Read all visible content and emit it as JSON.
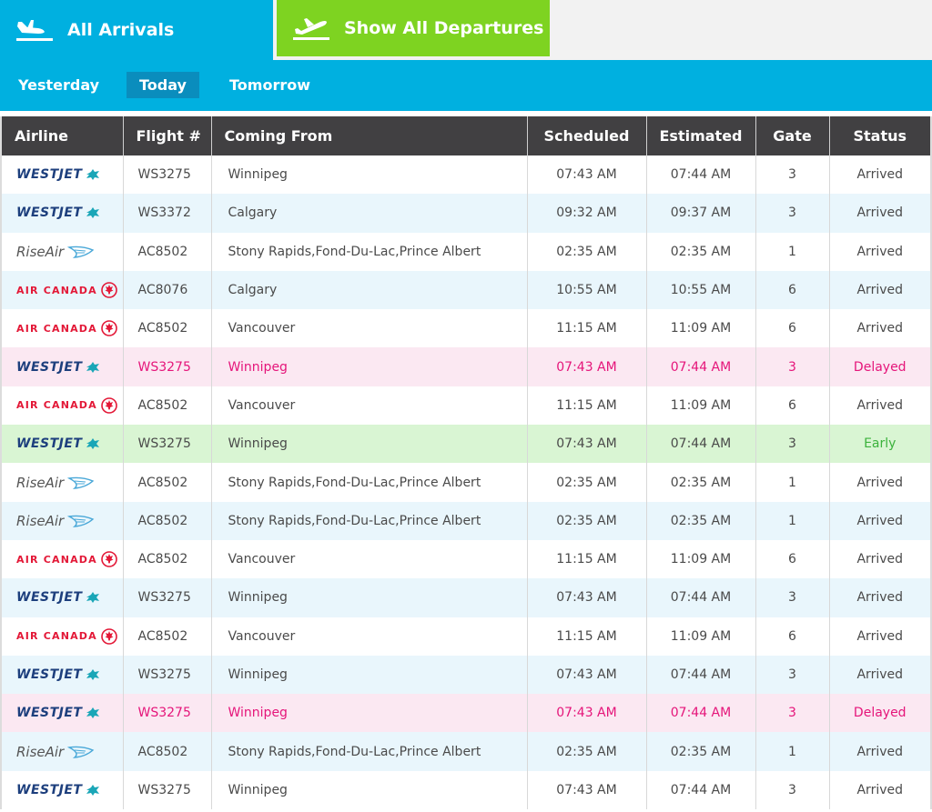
{
  "tabs": {
    "arrivals_label": "All Arrivals",
    "departures_label": "Show All Departures"
  },
  "dates": {
    "yesterday": "Yesterday",
    "today": "Today",
    "tomorrow": "Tomorrow",
    "selected": "Today"
  },
  "table": {
    "headers": {
      "airline": "Airline",
      "flight": "Flight #",
      "from": "Coming From",
      "scheduled": "Scheduled",
      "estimated": "Estimated",
      "gate": "Gate",
      "status": "Status"
    },
    "rows": [
      {
        "airline": "WESTJET",
        "logo": "westjet",
        "flight": "WS3275",
        "from": "Winnipeg",
        "scheduled": "07:43 AM",
        "estimated": "07:44 AM",
        "gate": "3",
        "status": "Arrived",
        "style": "white"
      },
      {
        "airline": "WESTJET",
        "logo": "westjet",
        "flight": "WS3372",
        "from": "Calgary",
        "scheduled": "09:32 AM",
        "estimated": "09:37 AM",
        "gate": "3",
        "status": "Arrived",
        "style": "blue"
      },
      {
        "airline": "RiseAir",
        "logo": "riseair",
        "flight": "AC8502",
        "from": "Stony Rapids,Fond-Du-Lac,Prince Albert",
        "scheduled": "02:35 AM",
        "estimated": "02:35 AM",
        "gate": "1",
        "status": "Arrived",
        "style": "white"
      },
      {
        "airline": "AIR CANADA",
        "logo": "aircanada",
        "flight": "AC8076",
        "from": "Calgary",
        "scheduled": "10:55 AM",
        "estimated": "10:55 AM",
        "gate": "6",
        "status": "Arrived",
        "style": "blue"
      },
      {
        "airline": "AIR CANADA",
        "logo": "aircanada",
        "flight": "AC8502",
        "from": "Vancouver",
        "scheduled": "11:15 AM",
        "estimated": "11:09 AM",
        "gate": "6",
        "status": "Arrived",
        "style": "white"
      },
      {
        "airline": "WESTJET",
        "logo": "westjet",
        "flight": "WS3275",
        "from": "Winnipeg",
        "scheduled": "07:43 AM",
        "estimated": "07:44 AM",
        "gate": "3",
        "status": "Delayed",
        "style": "delayed"
      },
      {
        "airline": "AIR CANADA",
        "logo": "aircanada",
        "flight": "AC8502",
        "from": "Vancouver",
        "scheduled": "11:15 AM",
        "estimated": "11:09 AM",
        "gate": "6",
        "status": "Arrived",
        "style": "white"
      },
      {
        "airline": "WESTJET",
        "logo": "westjet",
        "flight": "WS3275",
        "from": "Winnipeg",
        "scheduled": "07:43 AM",
        "estimated": "07:44 AM",
        "gate": "3",
        "status": "Early",
        "style": "early"
      },
      {
        "airline": "RiseAir",
        "logo": "riseair",
        "flight": "AC8502",
        "from": "Stony Rapids,Fond-Du-Lac,Prince Albert",
        "scheduled": "02:35 AM",
        "estimated": "02:35 AM",
        "gate": "1",
        "status": "Arrived",
        "style": "white"
      },
      {
        "airline": "RiseAir",
        "logo": "riseair",
        "flight": "AC8502",
        "from": "Stony Rapids,Fond-Du-Lac,Prince Albert",
        "scheduled": "02:35 AM",
        "estimated": "02:35 AM",
        "gate": "1",
        "status": "Arrived",
        "style": "blue"
      },
      {
        "airline": "AIR CANADA",
        "logo": "aircanada",
        "flight": "AC8502",
        "from": "Vancouver",
        "scheduled": "11:15 AM",
        "estimated": "11:09 AM",
        "gate": "6",
        "status": "Arrived",
        "style": "white"
      },
      {
        "airline": "WESTJET",
        "logo": "westjet",
        "flight": "WS3275",
        "from": "Winnipeg",
        "scheduled": "07:43 AM",
        "estimated": "07:44 AM",
        "gate": "3",
        "status": "Arrived",
        "style": "blue"
      },
      {
        "airline": "AIR CANADA",
        "logo": "aircanada",
        "flight": "AC8502",
        "from": "Vancouver",
        "scheduled": "11:15 AM",
        "estimated": "11:09 AM",
        "gate": "6",
        "status": "Arrived",
        "style": "white"
      },
      {
        "airline": "WESTJET",
        "logo": "westjet",
        "flight": "WS3275",
        "from": "Winnipeg",
        "scheduled": "07:43 AM",
        "estimated": "07:44 AM",
        "gate": "3",
        "status": "Arrived",
        "style": "blue"
      },
      {
        "airline": "WESTJET",
        "logo": "westjet",
        "flight": "WS3275",
        "from": "Winnipeg",
        "scheduled": "07:43 AM",
        "estimated": "07:44 AM",
        "gate": "3",
        "status": "Delayed",
        "style": "delayed"
      },
      {
        "airline": "RiseAir",
        "logo": "riseair",
        "flight": "AC8502",
        "from": "Stony Rapids,Fond-Du-Lac,Prince Albert",
        "scheduled": "02:35 AM",
        "estimated": "02:35 AM",
        "gate": "1",
        "status": "Arrived",
        "style": "blue"
      },
      {
        "airline": "WESTJET",
        "logo": "westjet",
        "flight": "WS3275",
        "from": "Winnipeg",
        "scheduled": "07:43 AM",
        "estimated": "07:44 AM",
        "gate": "3",
        "status": "Arrived",
        "style": "white"
      }
    ]
  },
  "colors": {
    "accent_blue": "#00b0e0",
    "departures_green": "#7ed321",
    "header_dark": "#414042",
    "delayed_pink": "#e5157a",
    "early_green": "#3cb23c"
  },
  "icons": {
    "arrivals": "plane-landing-icon",
    "departures": "plane-takeoff-icon"
  }
}
